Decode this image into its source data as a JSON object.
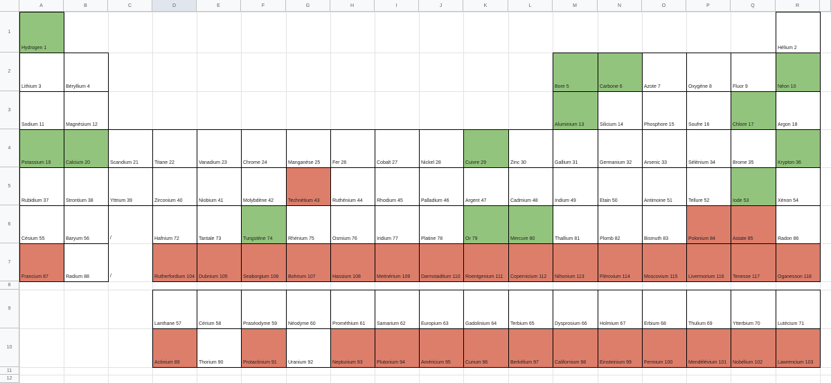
{
  "sheet": {
    "columns": [
      "A",
      "B",
      "C",
      "D",
      "E",
      "F",
      "G",
      "H",
      "I",
      "J",
      "K",
      "L",
      "M",
      "N",
      "O",
      "P",
      "Q",
      "R"
    ],
    "rows": [
      "1",
      "2",
      "3",
      "4",
      "5",
      "6",
      "7",
      "8",
      "9",
      "10",
      "11",
      "12"
    ],
    "selected_column": "D",
    "colors": {
      "green": "#93c47d",
      "red": "#dd7e6b",
      "border": "#000000",
      "grid": "#e2e2e2"
    }
  },
  "elements": [
    {
      "r": 1,
      "c": 1,
      "t": "Hydrogen 1",
      "s": "green"
    },
    {
      "r": 1,
      "c": 18,
      "t": "Hélium 2",
      "s": ""
    },
    {
      "r": 2,
      "c": 1,
      "t": "Lithium 3",
      "s": ""
    },
    {
      "r": 2,
      "c": 2,
      "t": "Béryllium 4",
      "s": ""
    },
    {
      "r": 2,
      "c": 13,
      "t": "Bore 5",
      "s": "green"
    },
    {
      "r": 2,
      "c": 14,
      "t": "Carbone 6",
      "s": "green"
    },
    {
      "r": 2,
      "c": 15,
      "t": "Azote 7",
      "s": ""
    },
    {
      "r": 2,
      "c": 16,
      "t": "Oxygène 8",
      "s": ""
    },
    {
      "r": 2,
      "c": 17,
      "t": "Fluor 9",
      "s": ""
    },
    {
      "r": 2,
      "c": 18,
      "t": "Néon 10",
      "s": "green"
    },
    {
      "r": 3,
      "c": 1,
      "t": "Sodium 11",
      "s": ""
    },
    {
      "r": 3,
      "c": 2,
      "t": "Magnésium 12",
      "s": ""
    },
    {
      "r": 3,
      "c": 13,
      "t": "Aluminium 13",
      "s": "green"
    },
    {
      "r": 3,
      "c": 14,
      "t": "Silicium 14",
      "s": ""
    },
    {
      "r": 3,
      "c": 15,
      "t": "Phosphore 15",
      "s": ""
    },
    {
      "r": 3,
      "c": 16,
      "t": "Soufre 16",
      "s": ""
    },
    {
      "r": 3,
      "c": 17,
      "t": "Chlore 17",
      "s": "green"
    },
    {
      "r": 3,
      "c": 18,
      "t": "Argon 18",
      "s": ""
    },
    {
      "r": 4,
      "c": 1,
      "t": "Potassium 19",
      "s": "green"
    },
    {
      "r": 4,
      "c": 2,
      "t": "Calcium 20",
      "s": "green"
    },
    {
      "r": 4,
      "c": 3,
      "t": "Scandium 21",
      "s": ""
    },
    {
      "r": 4,
      "c": 4,
      "t": "Titane 22",
      "s": ""
    },
    {
      "r": 4,
      "c": 5,
      "t": "Vanadium 23",
      "s": ""
    },
    {
      "r": 4,
      "c": 6,
      "t": "Chrome 24",
      "s": ""
    },
    {
      "r": 4,
      "c": 7,
      "t": "Manganèse 25",
      "s": ""
    },
    {
      "r": 4,
      "c": 8,
      "t": "Fer 26",
      "s": ""
    },
    {
      "r": 4,
      "c": 9,
      "t": "Cobalt 27",
      "s": ""
    },
    {
      "r": 4,
      "c": 10,
      "t": "Nickel 28",
      "s": ""
    },
    {
      "r": 4,
      "c": 11,
      "t": "Cuivre 29",
      "s": "green"
    },
    {
      "r": 4,
      "c": 12,
      "t": "Zinc 30",
      "s": ""
    },
    {
      "r": 4,
      "c": 13,
      "t": "Gallium 31",
      "s": ""
    },
    {
      "r": 4,
      "c": 14,
      "t": "Germanium 32",
      "s": ""
    },
    {
      "r": 4,
      "c": 15,
      "t": "Arsenic 33",
      "s": ""
    },
    {
      "r": 4,
      "c": 16,
      "t": "Sélénium 34",
      "s": ""
    },
    {
      "r": 4,
      "c": 17,
      "t": "Brome 35",
      "s": ""
    },
    {
      "r": 4,
      "c": 18,
      "t": "Krypton 36",
      "s": "green"
    },
    {
      "r": 5,
      "c": 1,
      "t": "Rubidium 37",
      "s": ""
    },
    {
      "r": 5,
      "c": 2,
      "t": "Strontium 38",
      "s": ""
    },
    {
      "r": 5,
      "c": 3,
      "t": "Yttrium 39",
      "s": ""
    },
    {
      "r": 5,
      "c": 4,
      "t": "Zirconium 40",
      "s": ""
    },
    {
      "r": 5,
      "c": 5,
      "t": "Niobium 41",
      "s": ""
    },
    {
      "r": 5,
      "c": 6,
      "t": "Molybdène 42",
      "s": ""
    },
    {
      "r": 5,
      "c": 7,
      "t": "Technétium 43",
      "s": "red"
    },
    {
      "r": 5,
      "c": 8,
      "t": "Ruthénium 44",
      "s": ""
    },
    {
      "r": 5,
      "c": 9,
      "t": "Rhodium 45",
      "s": ""
    },
    {
      "r": 5,
      "c": 10,
      "t": "Palladium 46",
      "s": ""
    },
    {
      "r": 5,
      "c": 11,
      "t": "Argent 47",
      "s": ""
    },
    {
      "r": 5,
      "c": 12,
      "t": "Cadmium 48",
      "s": ""
    },
    {
      "r": 5,
      "c": 13,
      "t": "Indium 49",
      "s": ""
    },
    {
      "r": 5,
      "c": 14,
      "t": "Etain 50",
      "s": ""
    },
    {
      "r": 5,
      "c": 15,
      "t": "Antimoine 51",
      "s": ""
    },
    {
      "r": 5,
      "c": 16,
      "t": "Tellure 52",
      "s": ""
    },
    {
      "r": 5,
      "c": 17,
      "t": "Iode 53",
      "s": "green"
    },
    {
      "r": 5,
      "c": 18,
      "t": "Xénon 54",
      "s": ""
    },
    {
      "r": 6,
      "c": 1,
      "t": "Césium 55",
      "s": ""
    },
    {
      "r": 6,
      "c": 2,
      "t": "Baryum 56",
      "s": ""
    },
    {
      "r": 6,
      "c": 3,
      "t": "/",
      "s": "plain"
    },
    {
      "r": 6,
      "c": 4,
      "t": "Hafnium 72",
      "s": ""
    },
    {
      "r": 6,
      "c": 5,
      "t": "Tantale 73",
      "s": ""
    },
    {
      "r": 6,
      "c": 6,
      "t": "Tungstène 74",
      "s": "green"
    },
    {
      "r": 6,
      "c": 7,
      "t": "Rhénium 75",
      "s": ""
    },
    {
      "r": 6,
      "c": 8,
      "t": "Osmium 76",
      "s": ""
    },
    {
      "r": 6,
      "c": 9,
      "t": "Iridium 77",
      "s": ""
    },
    {
      "r": 6,
      "c": 10,
      "t": "Platine 78",
      "s": ""
    },
    {
      "r": 6,
      "c": 11,
      "t": "Or 79",
      "s": "green"
    },
    {
      "r": 6,
      "c": 12,
      "t": "Mercure 80",
      "s": "green"
    },
    {
      "r": 6,
      "c": 13,
      "t": "Thallium 81",
      "s": ""
    },
    {
      "r": 6,
      "c": 14,
      "t": "Plomb 82",
      "s": ""
    },
    {
      "r": 6,
      "c": 15,
      "t": "Bismuth 83",
      "s": ""
    },
    {
      "r": 6,
      "c": 16,
      "t": "Polonium 84",
      "s": "red"
    },
    {
      "r": 6,
      "c": 17,
      "t": "Astate 85",
      "s": "red"
    },
    {
      "r": 6,
      "c": 18,
      "t": "Radon 86",
      "s": ""
    },
    {
      "r": 7,
      "c": 1,
      "t": "Francium 87",
      "s": "red"
    },
    {
      "r": 7,
      "c": 2,
      "t": "Radium 88",
      "s": ""
    },
    {
      "r": 7,
      "c": 3,
      "t": "/",
      "s": "plain"
    },
    {
      "r": 7,
      "c": 4,
      "t": "Rutherfordium 104",
      "s": "red"
    },
    {
      "r": 7,
      "c": 5,
      "t": "Dubnium 105",
      "s": "red"
    },
    {
      "r": 7,
      "c": 6,
      "t": "Seaborgium 106",
      "s": "red"
    },
    {
      "r": 7,
      "c": 7,
      "t": "Bohrium 107",
      "s": "red"
    },
    {
      "r": 7,
      "c": 8,
      "t": "Hassium 108",
      "s": "red"
    },
    {
      "r": 7,
      "c": 9,
      "t": "Meitnérium 109",
      "s": "red"
    },
    {
      "r": 7,
      "c": 10,
      "t": "Darmstadtium 110",
      "s": "red"
    },
    {
      "r": 7,
      "c": 11,
      "t": "Roentgenium 111",
      "s": "red"
    },
    {
      "r": 7,
      "c": 12,
      "t": "Copernicium 112",
      "s": "red"
    },
    {
      "r": 7,
      "c": 13,
      "t": "Nihonium 113",
      "s": "red"
    },
    {
      "r": 7,
      "c": 14,
      "t": "Flérovium 114",
      "s": "red"
    },
    {
      "r": 7,
      "c": 15,
      "t": "Moscovium 115",
      "s": "red"
    },
    {
      "r": 7,
      "c": 16,
      "t": "Livermorium 116",
      "s": "red"
    },
    {
      "r": 7,
      "c": 17,
      "t": "Tenesse 117",
      "s": "red"
    },
    {
      "r": 7,
      "c": 18,
      "t": "Oganesson 118",
      "s": "red"
    },
    {
      "r": 9,
      "c": 4,
      "t": "Lanthane 57",
      "s": ""
    },
    {
      "r": 9,
      "c": 5,
      "t": "Cérium 58",
      "s": ""
    },
    {
      "r": 9,
      "c": 6,
      "t": "Praséodyme 59",
      "s": ""
    },
    {
      "r": 9,
      "c": 7,
      "t": "Néodyme 60",
      "s": ""
    },
    {
      "r": 9,
      "c": 8,
      "t": "Prométhium 61",
      "s": ""
    },
    {
      "r": 9,
      "c": 9,
      "t": "Samarium 62",
      "s": ""
    },
    {
      "r": 9,
      "c": 10,
      "t": "Europium 63",
      "s": ""
    },
    {
      "r": 9,
      "c": 11,
      "t": "Gadolinium 64",
      "s": ""
    },
    {
      "r": 9,
      "c": 12,
      "t": "Terbium 65",
      "s": ""
    },
    {
      "r": 9,
      "c": 13,
      "t": "Dysprosium 66",
      "s": ""
    },
    {
      "r": 9,
      "c": 14,
      "t": "Holmium 67",
      "s": ""
    },
    {
      "r": 9,
      "c": 15,
      "t": "Erbium 68",
      "s": ""
    },
    {
      "r": 9,
      "c": 16,
      "t": "Thulium 69",
      "s": ""
    },
    {
      "r": 9,
      "c": 17,
      "t": "Ytterbium 70",
      "s": ""
    },
    {
      "r": 9,
      "c": 18,
      "t": "Lutécium 71",
      "s": ""
    },
    {
      "r": 10,
      "c": 4,
      "t": "Actinium 89",
      "s": "red"
    },
    {
      "r": 10,
      "c": 5,
      "t": "Thorium 90",
      "s": ""
    },
    {
      "r": 10,
      "c": 6,
      "t": "Protactinium 91",
      "s": "red"
    },
    {
      "r": 10,
      "c": 7,
      "t": "Uranium 92",
      "s": ""
    },
    {
      "r": 10,
      "c": 8,
      "t": "Neptunium 93",
      "s": "red"
    },
    {
      "r": 10,
      "c": 9,
      "t": "Plutonium 94",
      "s": "red"
    },
    {
      "r": 10,
      "c": 10,
      "t": "Américium 95",
      "s": "red"
    },
    {
      "r": 10,
      "c": 11,
      "t": "Curium 96",
      "s": "red"
    },
    {
      "r": 10,
      "c": 12,
      "t": "Berkélium 97",
      "s": "red"
    },
    {
      "r": 10,
      "c": 13,
      "t": "Californium 98",
      "s": "red"
    },
    {
      "r": 10,
      "c": 14,
      "t": "Einsteinium 99",
      "s": "red"
    },
    {
      "r": 10,
      "c": 15,
      "t": "Fermium 100",
      "s": "red"
    },
    {
      "r": 10,
      "c": 16,
      "t": "Mendélévium 101",
      "s": "red"
    },
    {
      "r": 10,
      "c": 17,
      "t": "Nobélium 102",
      "s": "red"
    },
    {
      "r": 10,
      "c": 18,
      "t": "Lawrencium 103",
      "s": "red"
    }
  ]
}
